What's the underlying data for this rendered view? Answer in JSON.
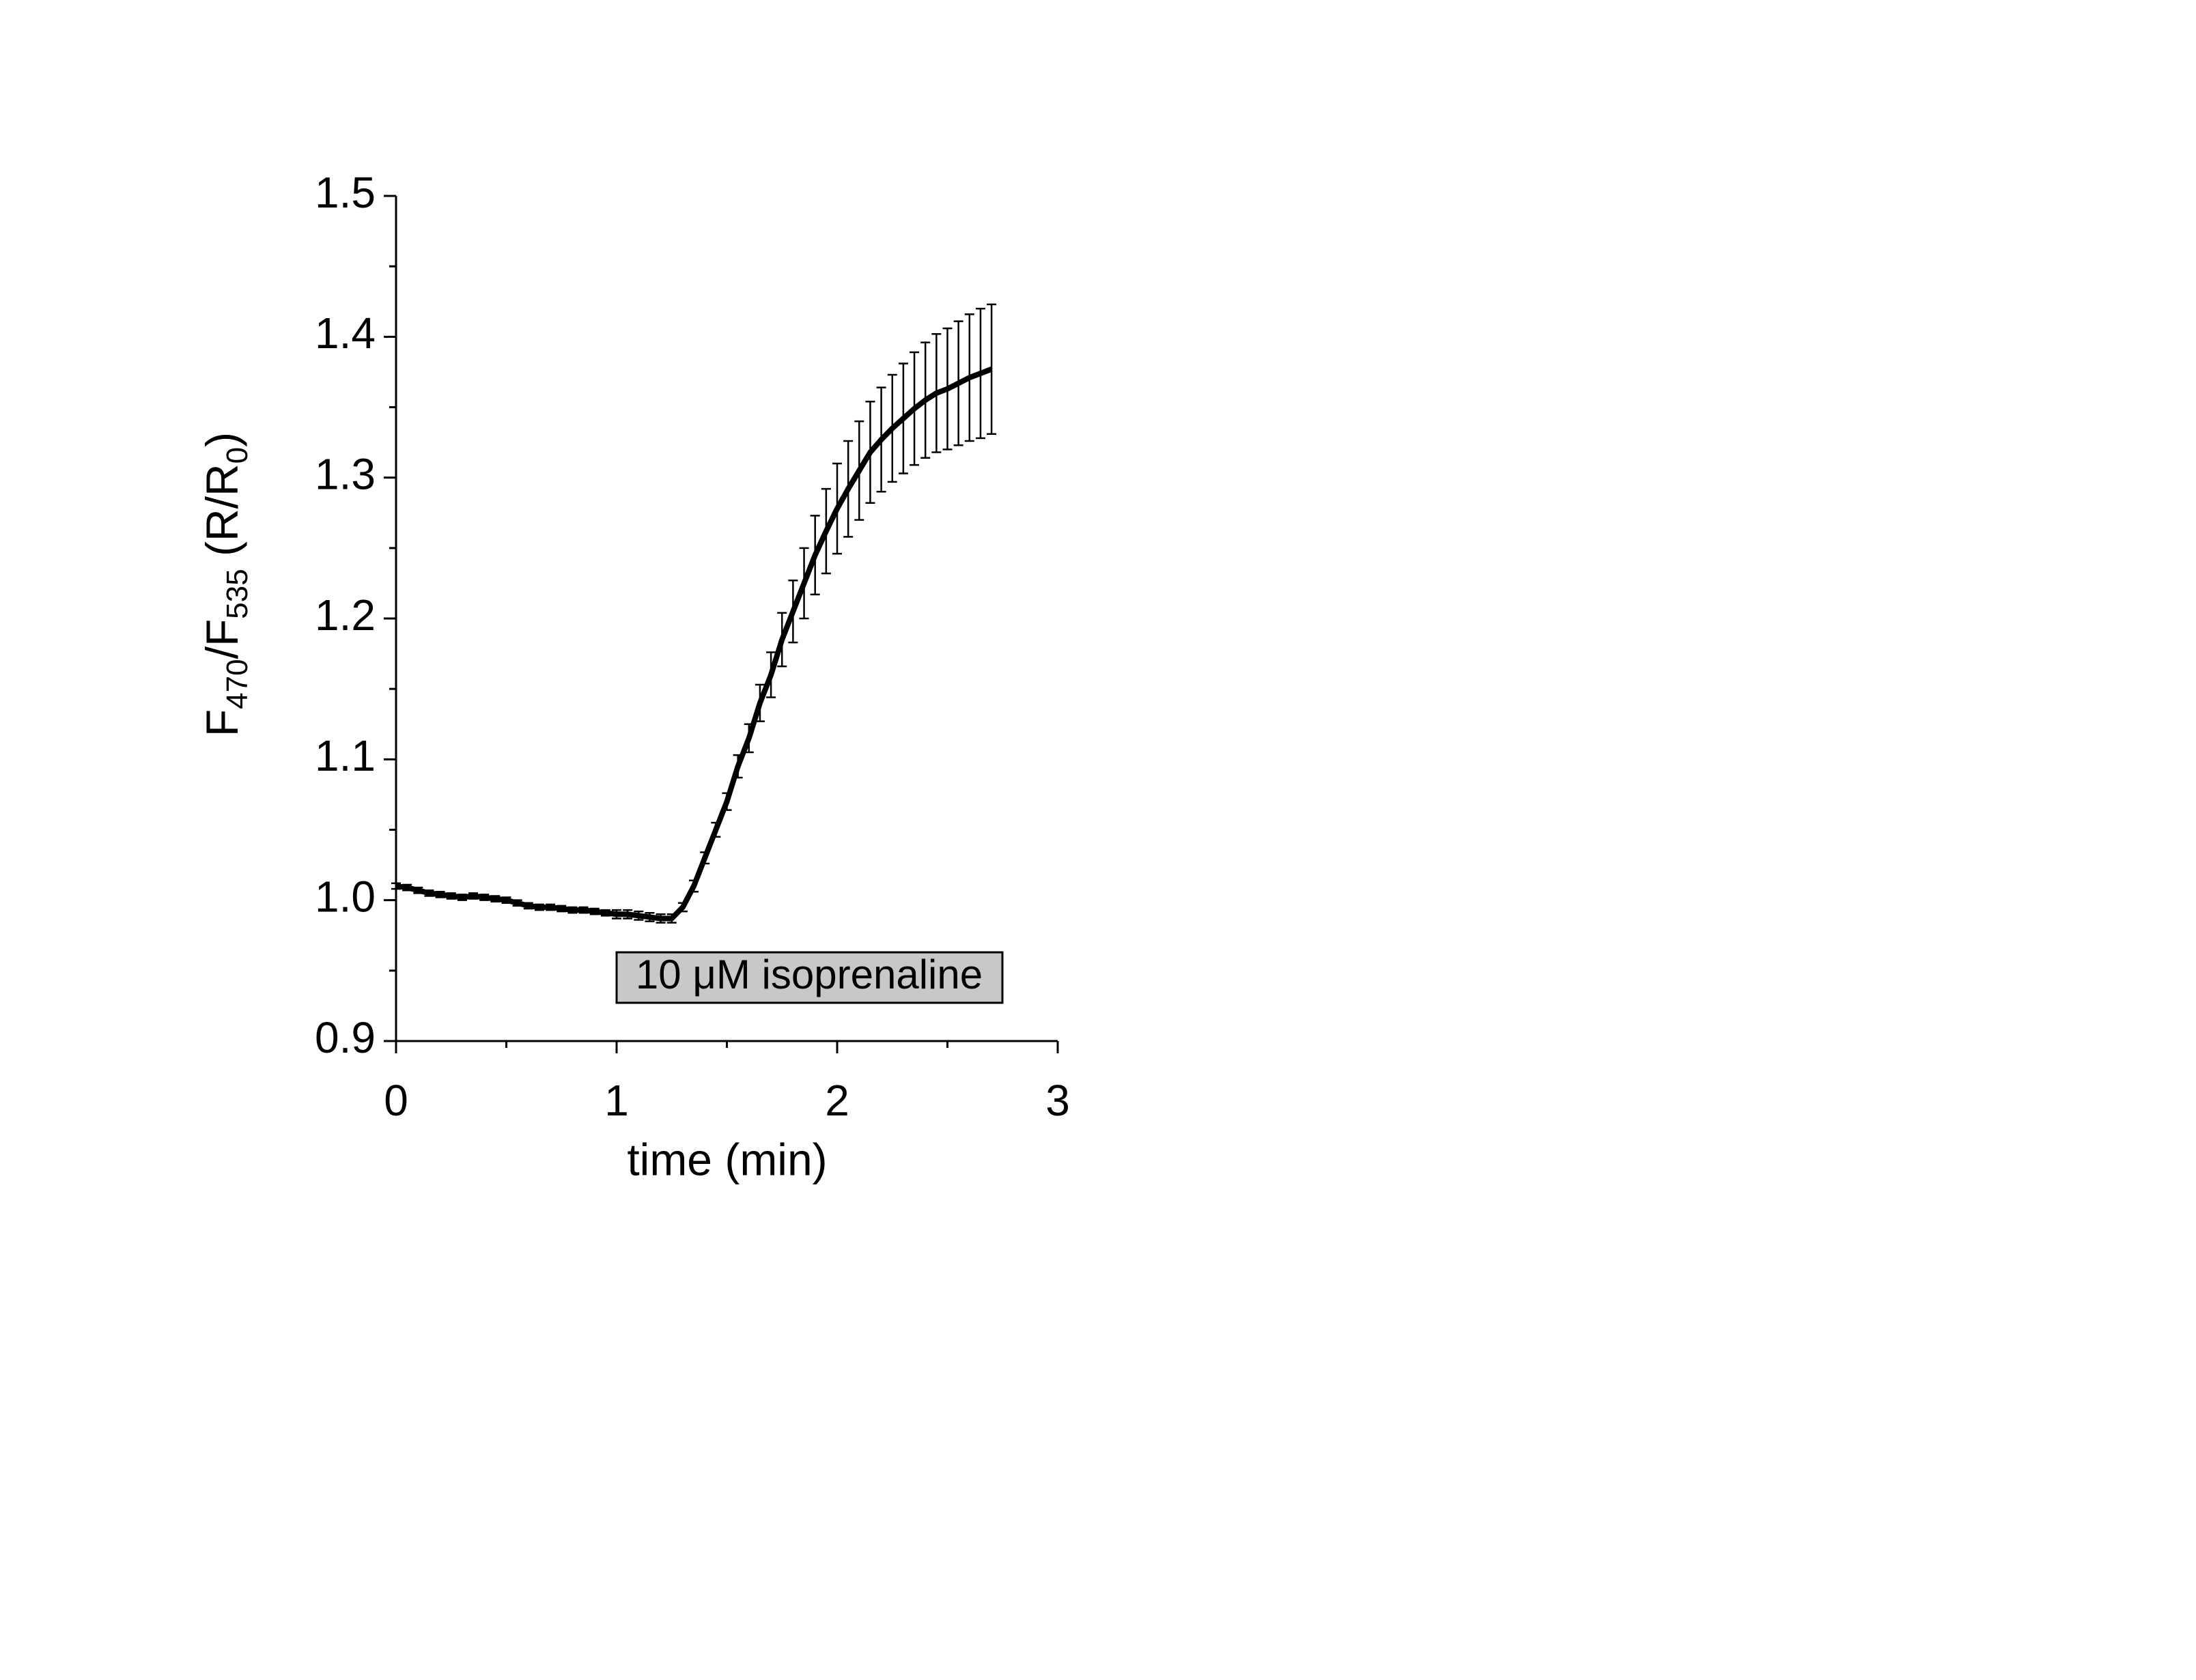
{
  "chart_data": {
    "type": "line",
    "y_label": [
      "F",
      "470",
      "/F",
      "535",
      " (R/R",
      "0",
      ")"
    ],
    "x_label": "time (min)",
    "annotation": "10 μM isoprenaline",
    "color": "#000000",
    "x": [
      0,
      0.05,
      0.1,
      0.15,
      0.2,
      0.25,
      0.3,
      0.35,
      0.4,
      0.45,
      0.5,
      0.55,
      0.6,
      0.65,
      0.7,
      0.75,
      0.8,
      0.85,
      0.9,
      0.95,
      1.0,
      1.05,
      1.1,
      1.15,
      1.2,
      1.25,
      1.3,
      1.35,
      1.4,
      1.45,
      1.5,
      1.55,
      1.6,
      1.65,
      1.7,
      1.75,
      1.8,
      1.85,
      1.9,
      1.95,
      2.0,
      2.05,
      2.1,
      2.15,
      2.2,
      2.25,
      2.3,
      2.35,
      2.4,
      2.45,
      2.5,
      2.55,
      2.6,
      2.65,
      2.7
    ],
    "values": [
      1.01,
      1.009,
      1.007,
      1.005,
      1.004,
      1.003,
      1.002,
      1.003,
      1.002,
      1.001,
      1.0,
      0.998,
      0.996,
      0.995,
      0.995,
      0.994,
      0.993,
      0.993,
      0.992,
      0.991,
      0.99,
      0.99,
      0.989,
      0.988,
      0.987,
      0.987,
      0.995,
      1.01,
      1.03,
      1.05,
      1.07,
      1.095,
      1.115,
      1.14,
      1.16,
      1.185,
      1.205,
      1.225,
      1.245,
      1.262,
      1.278,
      1.292,
      1.305,
      1.318,
      1.327,
      1.335,
      1.342,
      1.349,
      1.355,
      1.36,
      1.363,
      1.367,
      1.371,
      1.374,
      1.377
    ],
    "errors": [
      0.002,
      0.002,
      0.002,
      0.002,
      0.002,
      0.002,
      0.002,
      0.002,
      0.002,
      0.002,
      0.002,
      0.002,
      0.002,
      0.002,
      0.002,
      0.002,
      0.002,
      0.002,
      0.002,
      0.002,
      0.003,
      0.003,
      0.003,
      0.003,
      0.003,
      0.003,
      0.003,
      0.004,
      0.004,
      0.005,
      0.006,
      0.008,
      0.01,
      0.013,
      0.016,
      0.019,
      0.022,
      0.025,
      0.028,
      0.03,
      0.032,
      0.034,
      0.035,
      0.036,
      0.037,
      0.038,
      0.039,
      0.04,
      0.041,
      0.042,
      0.043,
      0.044,
      0.045,
      0.046,
      0.046
    ],
    "xlim": [
      0,
      3
    ],
    "xticks": [
      0,
      1,
      2,
      3
    ],
    "xminorticks": [
      0.5,
      1.5,
      2.5
    ],
    "ylim": [
      0.9,
      1.5
    ],
    "yticks": [
      0.9,
      {
        "value": 1.0,
        "label": "1.0"
      },
      1.1,
      1.2,
      1.3,
      1.4,
      1.5
    ],
    "yminorticks": [
      0.95,
      1.05,
      1.15,
      1.25,
      1.35,
      1.45
    ]
  }
}
